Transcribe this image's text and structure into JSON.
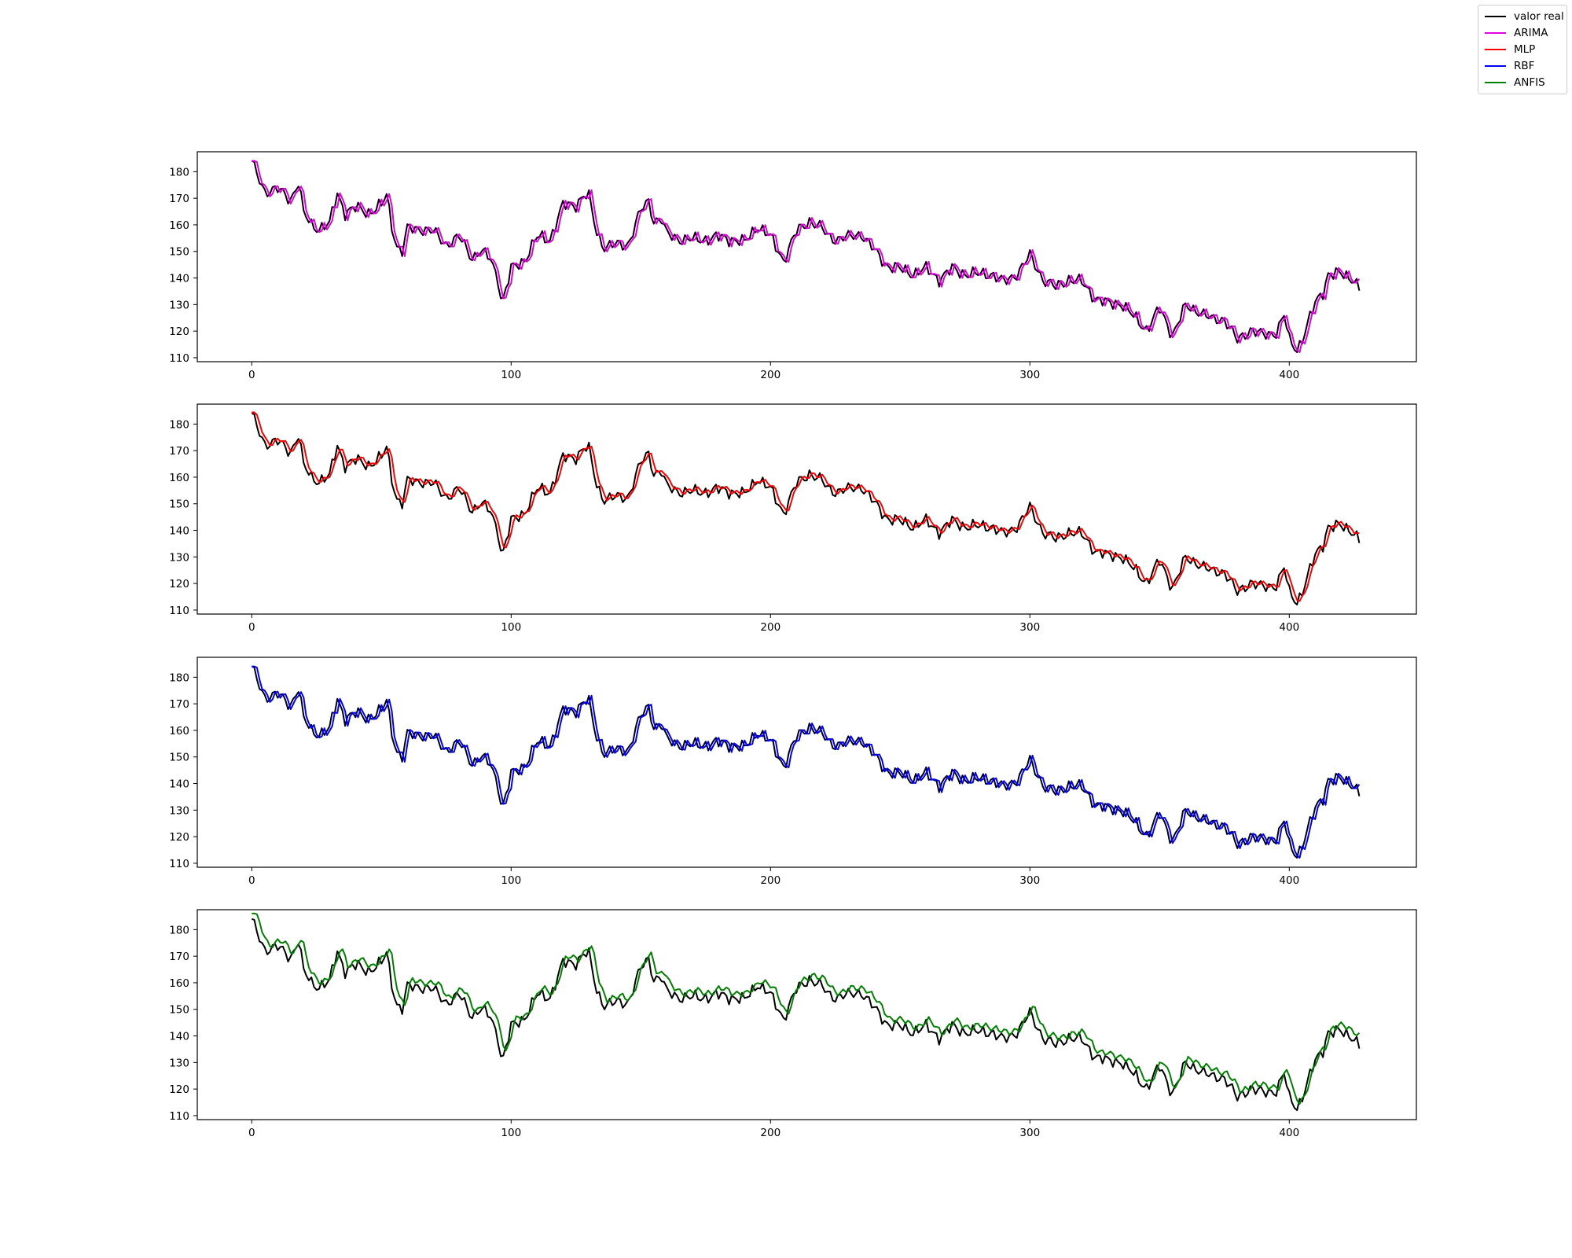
{
  "legend": {
    "entries": [
      {
        "label": "valor real",
        "color": "#000000"
      },
      {
        "label": "ARIMA",
        "color": "#e000e0"
      },
      {
        "label": "MLP",
        "color": "#ff0000"
      },
      {
        "label": "RBF",
        "color": "#0000ff"
      },
      {
        "label": "ANFIS",
        "color": "#008000"
      }
    ]
  },
  "chart_data": [
    {
      "type": "line",
      "xlim": [
        -21,
        449
      ],
      "ylim": [
        108.5,
        187.5
      ],
      "xticks": [
        0,
        100,
        200,
        300,
        400
      ],
      "yticks": [
        110,
        120,
        130,
        140,
        150,
        160,
        170,
        180
      ],
      "series": [
        {
          "name": "valor real",
          "color": "#000000"
        },
        {
          "name": "ARIMA",
          "color": "#e000e0",
          "model": "lag"
        }
      ]
    },
    {
      "type": "line",
      "xlim": [
        -21,
        449
      ],
      "ylim": [
        108.5,
        187.5
      ],
      "xticks": [
        0,
        100,
        200,
        300,
        400
      ],
      "yticks": [
        110,
        120,
        130,
        140,
        150,
        160,
        170,
        180
      ],
      "series": [
        {
          "name": "valor real",
          "color": "#000000"
        },
        {
          "name": "MLP",
          "color": "#ff0000",
          "model": "smooth"
        }
      ]
    },
    {
      "type": "line",
      "xlim": [
        -21,
        449
      ],
      "ylim": [
        108.5,
        187.5
      ],
      "xticks": [
        0,
        100,
        200,
        300,
        400
      ],
      "yticks": [
        110,
        120,
        130,
        140,
        150,
        160,
        170,
        180
      ],
      "series": [
        {
          "name": "valor real",
          "color": "#000000"
        },
        {
          "name": "RBF",
          "color": "#0000ff",
          "model": "lag"
        }
      ]
    },
    {
      "type": "line",
      "xlim": [
        -21,
        449
      ],
      "ylim": [
        108.5,
        187.5
      ],
      "xticks": [
        0,
        100,
        200,
        300,
        400
      ],
      "yticks": [
        110,
        120,
        130,
        140,
        150,
        160,
        170,
        180
      ],
      "series": [
        {
          "name": "valor real",
          "color": "#000000"
        },
        {
          "name": "ANFIS",
          "color": "#008000",
          "model": "offset"
        }
      ]
    }
  ],
  "valor_real": {
    "x": [
      0,
      5,
      10,
      15,
      18,
      20,
      23,
      26,
      30,
      33,
      36,
      40,
      45,
      50,
      52,
      54,
      56,
      58,
      60,
      65,
      70,
      75,
      80,
      85,
      88,
      92,
      95,
      96,
      97,
      100,
      105,
      110,
      115,
      120,
      125,
      128,
      130,
      133,
      136,
      140,
      145,
      150,
      153,
      155,
      158,
      160,
      165,
      170,
      175,
      180,
      185,
      190,
      195,
      200,
      205,
      210,
      215,
      220,
      222,
      225,
      230,
      235,
      240,
      245,
      250,
      255,
      260,
      265,
      270,
      275,
      280,
      285,
      290,
      295,
      300,
      305,
      310,
      315,
      320,
      325,
      330,
      335,
      340,
      345,
      350,
      355,
      360,
      365,
      370,
      375,
      380,
      385,
      390,
      395,
      398,
      400,
      403,
      406,
      410,
      413,
      415,
      420,
      425,
      427
    ],
    "y": [
      183,
      173,
      173,
      170,
      176,
      164,
      160,
      159,
      160,
      172,
      165,
      166,
      165,
      167,
      171,
      160,
      152,
      150,
      158,
      159,
      157,
      153,
      155,
      148,
      150,
      147,
      140,
      133,
      132,
      143,
      147,
      155,
      155,
      167,
      168,
      171,
      170,
      157,
      152,
      152,
      153,
      165,
      169,
      162,
      162,
      156,
      155,
      154,
      155,
      155,
      155,
      153,
      160,
      155,
      147,
      157,
      162,
      158,
      156,
      155,
      155,
      157,
      150,
      145,
      143,
      142,
      143,
      140,
      143,
      142,
      141,
      142,
      138,
      142,
      148,
      140,
      136,
      140,
      138,
      133,
      130,
      131,
      125,
      121,
      128,
      119,
      129,
      128,
      124,
      125,
      116,
      121,
      118,
      120,
      126,
      116,
      113,
      120,
      130,
      135,
      142,
      141,
      140,
      136
    ],
    "note": "sampled from plot"
  }
}
